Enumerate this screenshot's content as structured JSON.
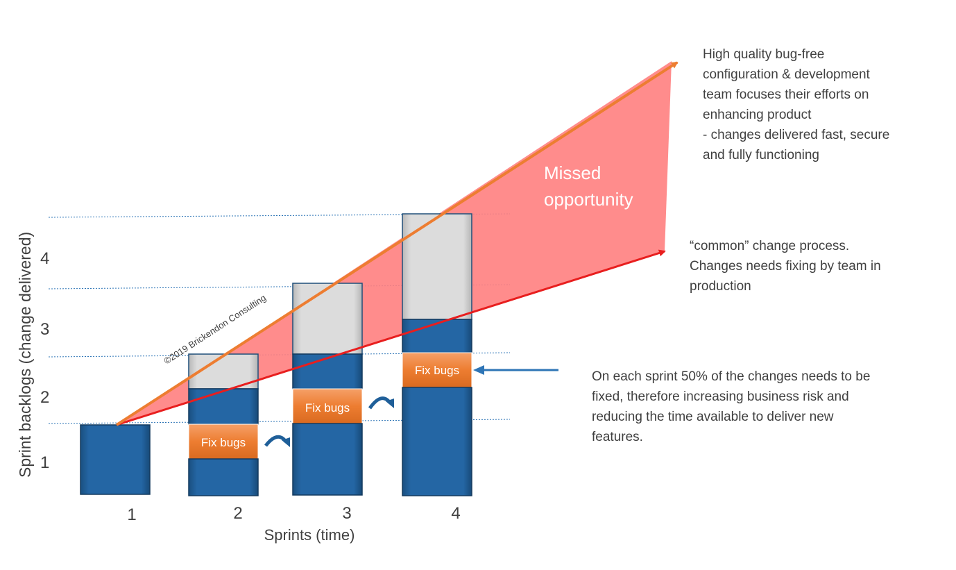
{
  "chart": {
    "ylabel": "Sprint backlogs (change delivered)",
    "xlabel": "Sprints (time)",
    "y_ticks": [
      "1",
      "2",
      "3",
      "4"
    ],
    "x_ticks": [
      "1",
      "2",
      "3",
      "4"
    ],
    "watermark": "©2019 Brickendon Consulting",
    "fix_label": "Fix bugs",
    "missed_line1": "Missed",
    "missed_line2": "opportunity"
  },
  "chart_data": {
    "type": "bar",
    "categories": [
      "1",
      "2",
      "3",
      "4"
    ],
    "stacked_segments": [
      [
        "delivered"
      ],
      [
        "delivered",
        "Fix bugs",
        "delivered",
        "new"
      ],
      [
        "delivered",
        "Fix bugs",
        "delivered",
        "new"
      ],
      [
        "delivered",
        "Fix bugs",
        "delivered",
        "new"
      ]
    ],
    "totals": [
      1,
      2,
      3,
      4
    ],
    "colors": {
      "delivered": "#1f5f99",
      "fix": "#ed7d31",
      "new": "#d9d9d9",
      "high_quality_line": "#ed7d31",
      "common_line": "#e81e1e",
      "missed_area": "#ff8080",
      "pointer": "#2e75b6"
    }
  },
  "notes": {
    "high_quality": "High quality bug-free\nconfiguration & development\nteam focuses their efforts on\nenhancing product\n- changes delivered fast, secure\nand fully functioning",
    "common": "“common” change process.\nChanges needs fixing by team in\nproduction",
    "sprint": "On each sprint 50% of the changes needs to be\nfixed, therefore increasing business risk and\nreducing the time available to deliver new\nfeatures."
  }
}
